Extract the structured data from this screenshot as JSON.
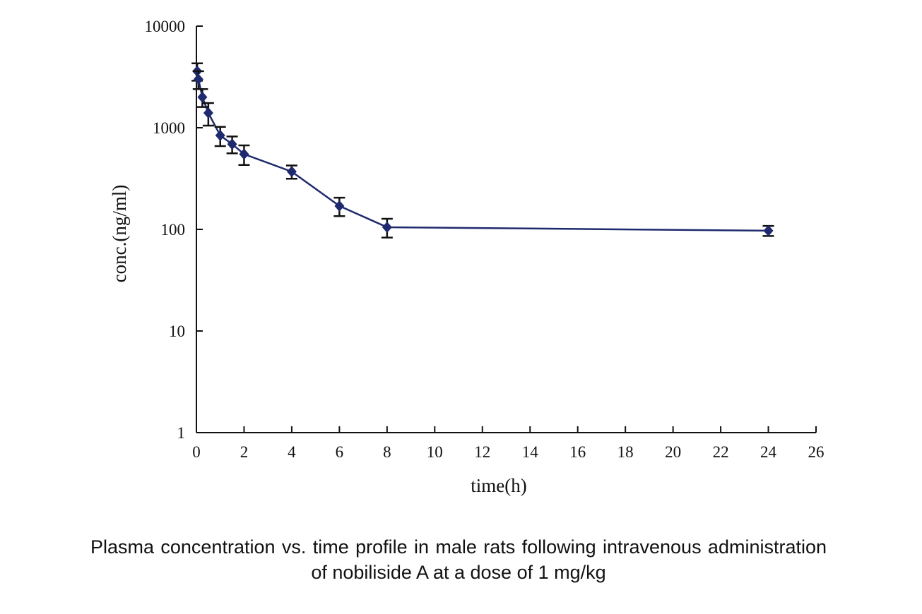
{
  "chart_data": {
    "type": "line",
    "xlabel": "time(h)",
    "ylabel": "conc.(ng/ml)",
    "caption": "Plasma concentration vs. time profile in male rats following intravenous administration of nobiliside A at a dose of 1 mg/kg",
    "x": [
      0.033,
      0.083,
      0.25,
      0.5,
      1,
      1.5,
      2,
      4,
      6,
      8,
      24
    ],
    "series": [
      {
        "color": "#1f2a6e",
        "values": [
          3600,
          3000,
          2000,
          1400,
          840,
          690,
          550,
          370,
          170,
          105,
          97
        ],
        "errors": [
          700,
          600,
          400,
          350,
          180,
          130,
          120,
          55,
          35,
          22,
          11
        ]
      }
    ],
    "xlim": [
      0,
      26
    ],
    "xticks": [
      0,
      2,
      4,
      6,
      8,
      10,
      12,
      14,
      16,
      18,
      20,
      22,
      24,
      26
    ],
    "ylim": [
      1,
      10000
    ],
    "yticks": [
      1,
      10,
      100,
      1000,
      10000
    ],
    "ylog": true
  }
}
